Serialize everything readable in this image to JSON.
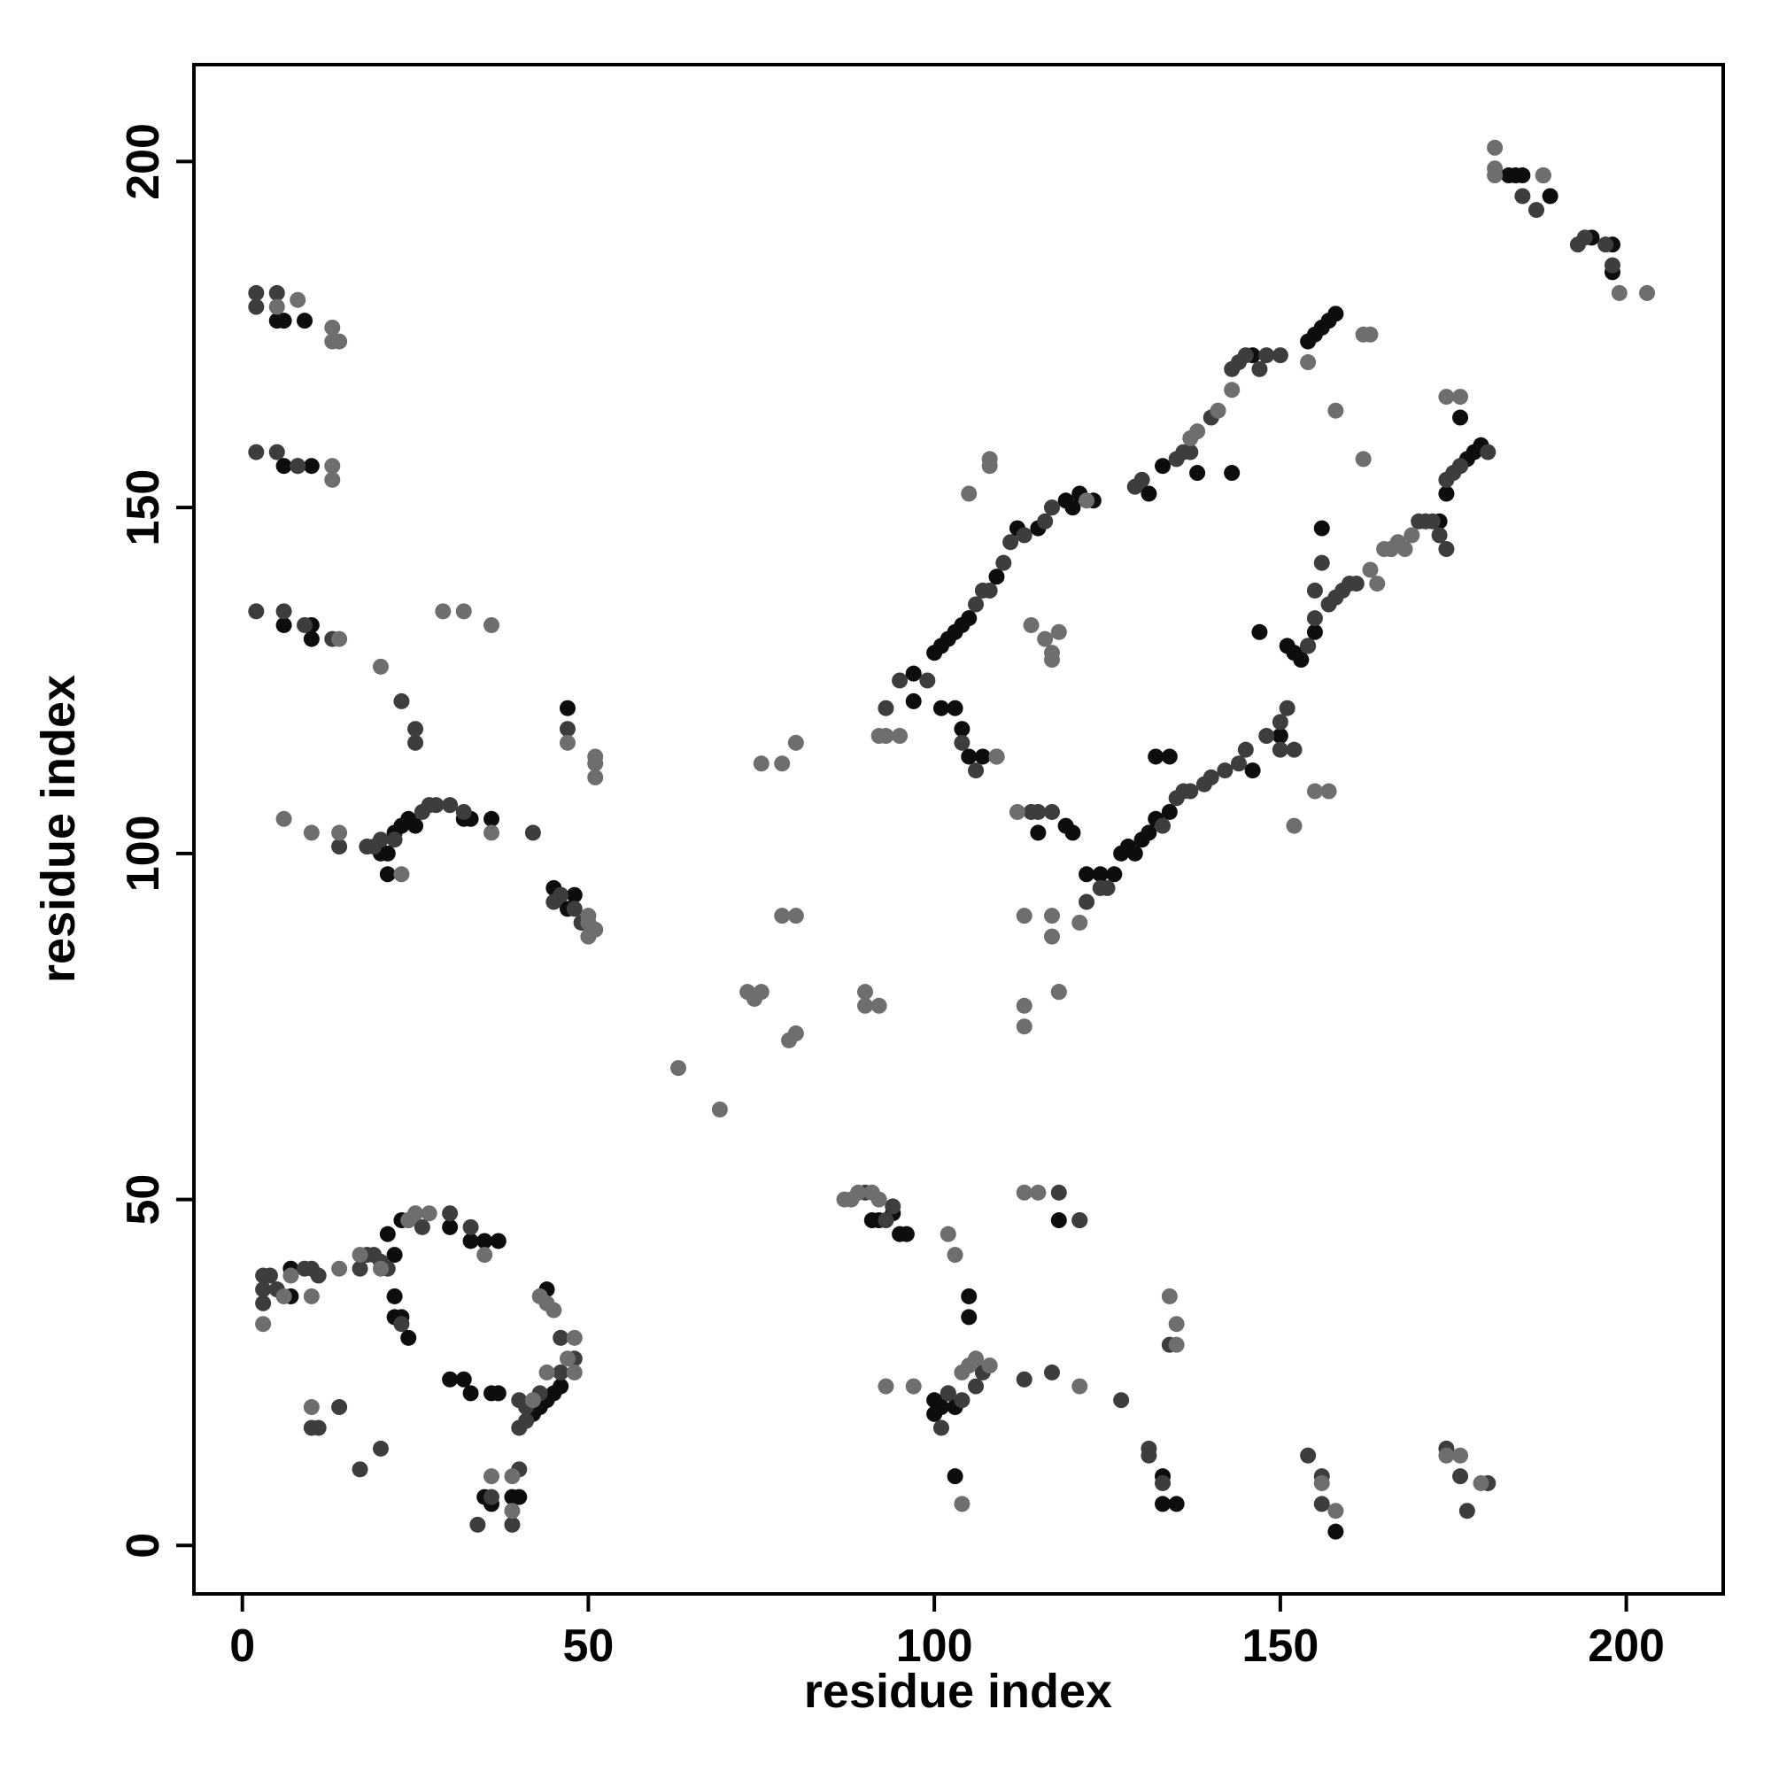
{
  "chart_data": {
    "type": "scatter",
    "xlabel": "residue index",
    "ylabel": "residue index",
    "xlim": [
      -7,
      214
    ],
    "ylim": [
      -7,
      214
    ],
    "xticks": [
      0,
      50,
      100,
      150,
      200
    ],
    "yticks": [
      0,
      50,
      100,
      150,
      200
    ],
    "series": [
      {
        "color": "#0d0d0d",
        "x": [
          5,
          6,
          9,
          10,
          6,
          8,
          10,
          6,
          10,
          20,
          21,
          22,
          23,
          24,
          25,
          32,
          33,
          36,
          21,
          45,
          46,
          47,
          48,
          47,
          7,
          7,
          21,
          22,
          23,
          24,
          30,
          33,
          35,
          37,
          22,
          22,
          23,
          24,
          30,
          32,
          33,
          36,
          37,
          35,
          36,
          40,
          39,
          42,
          43,
          44,
          45,
          46,
          44,
          91,
          92,
          94,
          95,
          96,
          100,
          100,
          101,
          102,
          103,
          105,
          105,
          103,
          118,
          121,
          133,
          133,
          135,
          158,
          97,
          97,
          100,
          101,
          102,
          103,
          104,
          105,
          109,
          112,
          115,
          119,
          120,
          121,
          123,
          131,
          133,
          146,
          154,
          155,
          156,
          157,
          158,
          101,
          103,
          104,
          105,
          107,
          109,
          115,
          119,
          120,
          122,
          124,
          126,
          127,
          128,
          129,
          130,
          131,
          132,
          134,
          138,
          143,
          146,
          150,
          132,
          134,
          151,
          152,
          153,
          154,
          155,
          173,
          174,
          176,
          177,
          178,
          179,
          156,
          147,
          176,
          183,
          184,
          185,
          188,
          189,
          195,
          198,
          198
        ],
        "y": [
          177,
          177,
          177,
          156,
          156,
          156,
          133,
          133,
          131,
          100,
          100,
          103,
          104,
          105,
          104,
          105,
          105,
          105,
          97,
          95,
          94,
          92,
          94,
          121,
          40,
          36,
          45,
          42,
          47,
          47,
          46,
          44,
          44,
          44,
          36,
          33,
          33,
          30,
          24,
          24,
          22,
          22,
          22,
          7,
          6,
          7,
          7,
          19,
          20,
          21,
          22,
          23,
          37,
          47,
          47,
          48,
          45,
          45,
          19,
          21,
          20,
          22,
          20,
          36,
          33,
          10,
          47,
          47,
          10,
          6,
          6,
          2,
          126,
          122,
          129,
          130,
          131,
          132,
          133,
          134,
          140,
          147,
          147,
          151,
          150,
          152,
          151,
          152,
          156,
          172,
          174,
          175,
          176,
          177,
          178,
          121,
          121,
          118,
          114,
          114,
          114,
          103,
          104,
          103,
          97,
          97,
          97,
          100,
          101,
          100,
          102,
          103,
          105,
          106,
          155,
          155,
          112,
          117,
          114,
          114,
          130,
          129,
          128,
          130,
          132,
          148,
          152,
          156,
          157,
          158,
          159,
          147,
          132,
          163,
          198,
          198,
          198,
          198,
          195,
          189,
          188,
          184
        ]
      },
      {
        "color": "#3d3d3d",
        "x": [
          2,
          2,
          5,
          2,
          5,
          8,
          2,
          6,
          9,
          13,
          23,
          25,
          25,
          14,
          18,
          19,
          20,
          22,
          26,
          27,
          28,
          30,
          32,
          42,
          45,
          46,
          48,
          49,
          47,
          3,
          3,
          3,
          4,
          5,
          9,
          10,
          11,
          17,
          18,
          19,
          20,
          21,
          26,
          30,
          33,
          23,
          20,
          17,
          34,
          36,
          39,
          40,
          40,
          41,
          41,
          43,
          46,
          48,
          40,
          46,
          10,
          11,
          14,
          90,
          93,
          94,
          101,
          102,
          104,
          106,
          107,
          113,
          117,
          118,
          121,
          127,
          131,
          131,
          133,
          134,
          154,
          156,
          156,
          174,
          176,
          177,
          180,
          93,
          95,
          99,
          106,
          107,
          108,
          110,
          111,
          113,
          116,
          117,
          129,
          130,
          135,
          136,
          137,
          140,
          143,
          144,
          145,
          147,
          148,
          150,
          104,
          106,
          114,
          115,
          117,
          122,
          124,
          125,
          133,
          135,
          136,
          137,
          139,
          140,
          142,
          144,
          145,
          148,
          150,
          150,
          151,
          152,
          154,
          155,
          157,
          158,
          159,
          160,
          161,
          170,
          171,
          172,
          174,
          175,
          176,
          180,
          173,
          174,
          156,
          155,
          185,
          187,
          193,
          194,
          197,
          198
        ],
        "y": [
          181,
          179,
          181,
          158,
          158,
          156,
          135,
          135,
          133,
          131,
          122,
          118,
          116,
          101,
          101,
          101,
          102,
          102,
          106,
          107,
          107,
          107,
          106,
          103,
          93,
          94,
          92,
          90,
          118,
          39,
          37,
          35,
          39,
          37,
          40,
          40,
          39,
          40,
          42,
          42,
          41,
          40,
          46,
          48,
          46,
          32,
          14,
          11,
          3,
          7,
          3,
          11,
          17,
          18,
          20,
          22,
          25,
          27,
          21,
          30,
          17,
          17,
          20,
          51,
          47,
          49,
          17,
          22,
          21,
          23,
          25,
          24,
          25,
          51,
          47,
          21,
          13,
          14,
          9,
          29,
          13,
          10,
          6,
          14,
          10,
          5,
          9,
          121,
          125,
          125,
          136,
          138,
          138,
          142,
          145,
          146,
          148,
          150,
          153,
          154,
          157,
          158,
          158,
          163,
          170,
          171,
          172,
          170,
          172,
          172,
          116,
          112,
          106,
          106,
          106,
          93,
          95,
          95,
          104,
          108,
          109,
          109,
          110,
          111,
          112,
          113,
          115,
          117,
          115,
          119,
          121,
          115,
          130,
          134,
          136,
          137,
          138,
          139,
          139,
          148,
          148,
          148,
          154,
          155,
          156,
          158,
          146,
          144,
          142,
          138,
          195,
          193,
          188,
          189,
          188,
          185
        ]
      },
      {
        "color": "#6e6e6e",
        "x": [
          5,
          8,
          13,
          13,
          14,
          13,
          13,
          14,
          29,
          32,
          36,
          20,
          6,
          10,
          14,
          36,
          23,
          50,
          50,
          50,
          51,
          51,
          51,
          51,
          47,
          3,
          6,
          7,
          10,
          14,
          17,
          24,
          25,
          27,
          35,
          20,
          10,
          36,
          39,
          39,
          42,
          43,
          44,
          45,
          47,
          48,
          48,
          44,
          63,
          69,
          73,
          74,
          75,
          75,
          78,
          78,
          80,
          79,
          80,
          80,
          90,
          90,
          92,
          87,
          88,
          89,
          91,
          92,
          102,
          103,
          93,
          97,
          104,
          105,
          106,
          108,
          104,
          113,
          115,
          121,
          134,
          135,
          135,
          156,
          158,
          174,
          176,
          179,
          92,
          93,
          95,
          105,
          108,
          108,
          114,
          116,
          117,
          117,
          118,
          137,
          138,
          141,
          143,
          162,
          163,
          166,
          166,
          168,
          154,
          158,
          164,
          165,
          166,
          167,
          169,
          163,
          162,
          152,
          155,
          157,
          174,
          176,
          181,
          181,
          181,
          188,
          199,
          203,
          113,
          117,
          118,
          117,
          118,
          113,
          113,
          121,
          109,
          112,
          122
        ],
        "y": [
          179,
          180,
          176,
          174,
          174,
          156,
          154,
          131,
          135,
          135,
          133,
          127,
          105,
          103,
          103,
          103,
          97,
          88,
          91,
          90,
          89,
          113,
          111,
          114,
          116,
          32,
          36,
          39,
          36,
          40,
          42,
          47,
          48,
          48,
          42,
          40,
          20,
          10,
          5,
          10,
          21,
          36,
          35,
          34,
          27,
          25,
          30,
          25,
          69,
          63,
          80,
          79,
          80,
          113,
          113,
          91,
          91,
          73,
          74,
          116,
          80,
          78,
          78,
          50,
          50,
          51,
          51,
          50,
          45,
          42,
          23,
          23,
          25,
          26,
          27,
          26,
          6,
          51,
          51,
          23,
          36,
          32,
          29,
          9,
          5,
          13,
          13,
          9,
          117,
          117,
          117,
          152,
          156,
          157,
          133,
          131,
          129,
          128,
          132,
          160,
          161,
          164,
          167,
          157,
          141,
          144,
          144,
          144,
          171,
          164,
          139,
          144,
          144,
          145,
          146,
          175,
          175,
          104,
          109,
          109,
          166,
          166,
          202,
          199,
          198,
          198,
          181,
          181,
          91,
          88,
          80,
          91,
          80,
          78,
          75,
          90,
          114,
          106,
          151
        ]
      }
    ]
  }
}
